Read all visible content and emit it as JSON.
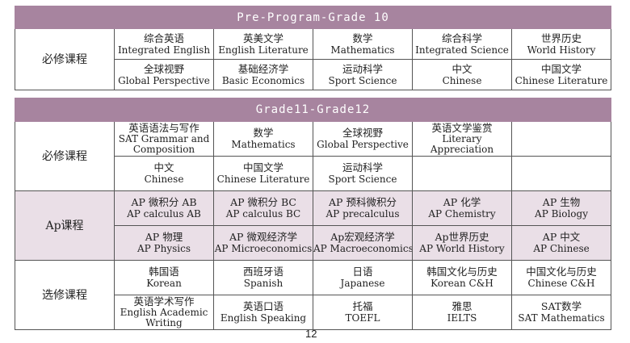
{
  "colors": {
    "header": "#a7849f",
    "ap_background": "#eadfe7"
  },
  "sections": [
    {
      "title": "Pre-Program-Grade 10",
      "groups": [
        {
          "category": "必修课程",
          "ap": false,
          "rows": [
            [
              [
                "综合英语",
                "Integrated English"
              ],
              [
                "英美文学",
                "English Literature"
              ],
              [
                "数学",
                "Mathematics"
              ],
              [
                "综合科学",
                "Integrated Science"
              ],
              [
                "世界历史",
                "World History"
              ]
            ],
            [
              [
                "全球视野",
                "Global Perspective"
              ],
              [
                "基础经济学",
                "Basic Economics"
              ],
              [
                "运动科学",
                "Sport Science"
              ],
              [
                "中文",
                "Chinese"
              ],
              [
                "中国文学",
                "Chinese Literature"
              ]
            ]
          ]
        }
      ]
    },
    {
      "title": "Grade11-Grade12",
      "groups": [
        {
          "category": "必修课程",
          "ap": false,
          "rows": [
            [
              [
                "英语语法与写作",
                "SAT Grammar and Composition"
              ],
              [
                "数学",
                "Mathematics"
              ],
              [
                "全球视野",
                "Global Perspective"
              ],
              [
                "英语文学鉴赏",
                "Literary Appreciation"
              ],
              [
                "",
                ""
              ]
            ],
            [
              [
                "中文",
                "Chinese"
              ],
              [
                "中国文学",
                "Chinese Literature"
              ],
              [
                "运动科学",
                "Sport Science"
              ],
              [
                "",
                ""
              ],
              [
                "",
                ""
              ]
            ]
          ]
        },
        {
          "category": "Ap课程",
          "ap": true,
          "rows": [
            [
              [
                "AP 微积分 AB",
                "AP calculus AB"
              ],
              [
                "AP 微积分 BC",
                "AP calculus BC"
              ],
              [
                "AP 预科微积分",
                "AP precalculus"
              ],
              [
                "AP 化学",
                "AP Chemistry"
              ],
              [
                "AP 生物",
                "AP Biology"
              ]
            ],
            [
              [
                "AP 物理",
                "AP Physics"
              ],
              [
                "AP 微观经济学",
                "AP Microeconomics"
              ],
              [
                "Ap宏观经济学",
                "AP Macroeconomics"
              ],
              [
                "Ap世界历史",
                "AP World History"
              ],
              [
                "AP 中文",
                "AP Chinese"
              ]
            ]
          ]
        },
        {
          "category": "选修课程",
          "ap": false,
          "rows": [
            [
              [
                "韩国语",
                "Korean"
              ],
              [
                "西班牙语",
                "Spanish"
              ],
              [
                "日语",
                "Japanese"
              ],
              [
                "韩国文化与历史",
                "Korean C&H"
              ],
              [
                "中国文化与历史",
                "Chinese C&H"
              ]
            ],
            [
              [
                "英语学术写作",
                "English Academic Writing"
              ],
              [
                "英语口语",
                "English Speaking"
              ],
              [
                "托福",
                "TOEFL"
              ],
              [
                "雅思",
                "IELTS"
              ],
              [
                "SAT数学",
                "SAT Mathematics"
              ]
            ]
          ]
        }
      ]
    }
  ],
  "page_number": "12"
}
